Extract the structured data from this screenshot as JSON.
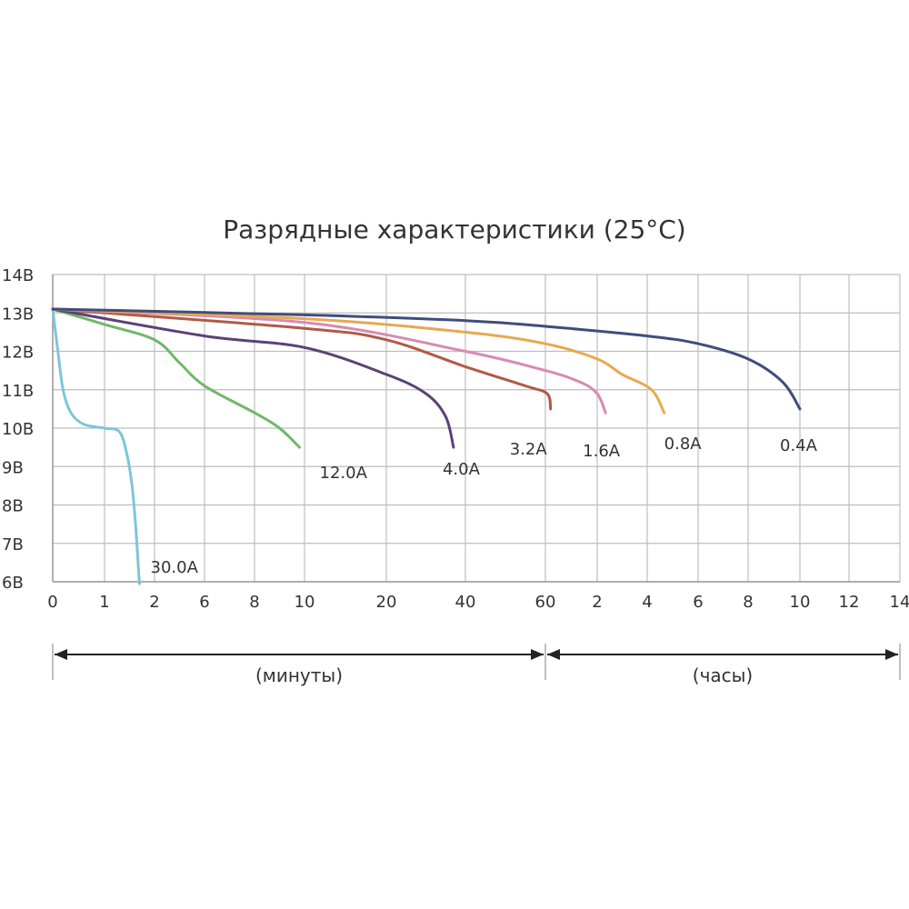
{
  "chart_data": {
    "type": "line",
    "title": "Разрядные характеристики (25°C)",
    "y_ticks": [
      "6В",
      "7В",
      "8В",
      "9В",
      "10В",
      "11В",
      "12В",
      "13В",
      "14В"
    ],
    "ylim": [
      6,
      14
    ],
    "x_scale": "piecewise: minutes 0–60, then hours 1–14",
    "x_ticks": [
      {
        "label": "0",
        "minutes": 0
      },
      {
        "label": "1",
        "minutes": 1
      },
      {
        "label": "2",
        "minutes": 2
      },
      {
        "label": "6",
        "minutes": 6
      },
      {
        "label": "8",
        "minutes": 8
      },
      {
        "label": "10",
        "minutes": 10
      },
      {
        "label": "20",
        "minutes": 20
      },
      {
        "label": "40",
        "minutes": 40
      },
      {
        "label": "60",
        "minutes": 60
      },
      {
        "label": "2",
        "minutes": 120
      },
      {
        "label": "4",
        "minutes": 240
      },
      {
        "label": "6",
        "minutes": 360
      },
      {
        "label": "8",
        "minutes": 480
      },
      {
        "label": "10",
        "minutes": 600
      },
      {
        "label": "12",
        "minutes": 720
      },
      {
        "label": "14",
        "minutes": 840
      }
    ],
    "x_segments": [
      {
        "label": "(минуты)",
        "from_minutes": 0,
        "to_minutes": 60
      },
      {
        "label": "(часы)",
        "from_minutes": 60,
        "to_minutes": 840
      }
    ],
    "grid": true,
    "series": [
      {
        "name": "30.0A",
        "color": "#7cc6d8",
        "points": [
          [
            0,
            13.1
          ],
          [
            0.1,
            12.0
          ],
          [
            0.2,
            11.0
          ],
          [
            0.35,
            10.4
          ],
          [
            0.6,
            10.1
          ],
          [
            1.0,
            10.0
          ],
          [
            1.3,
            9.9
          ],
          [
            1.45,
            9.3
          ],
          [
            1.55,
            8.5
          ],
          [
            1.62,
            7.5
          ],
          [
            1.68,
            6.3
          ],
          [
            1.7,
            5.95
          ]
        ]
      },
      {
        "name": "12.0A",
        "color": "#6fb86a",
        "points": [
          [
            0,
            13.1
          ],
          [
            1,
            12.7
          ],
          [
            2,
            12.3
          ],
          [
            4,
            11.7
          ],
          [
            6,
            11.1
          ],
          [
            8,
            10.4
          ],
          [
            9,
            10.0
          ],
          [
            9.8,
            9.5
          ]
        ]
      },
      {
        "name": "4.0A",
        "color": "#5a4275",
        "points": [
          [
            0,
            13.1
          ],
          [
            6,
            12.4
          ],
          [
            10,
            12.1
          ],
          [
            20,
            11.4
          ],
          [
            30,
            10.9
          ],
          [
            35,
            10.3
          ],
          [
            37,
            9.5
          ]
        ]
      },
      {
        "name": "3.2A",
        "color": "#b05a46",
        "points": [
          [
            0,
            13.1
          ],
          [
            10,
            12.6
          ],
          [
            20,
            12.3
          ],
          [
            40,
            11.6
          ],
          [
            55,
            11.1
          ],
          [
            62,
            10.9
          ],
          [
            66,
            10.5
          ]
        ]
      },
      {
        "name": "1.6A",
        "color": "#d88ab2",
        "points": [
          [
            0,
            13.1
          ],
          [
            10,
            12.75
          ],
          [
            40,
            12.0
          ],
          [
            60,
            11.5
          ],
          [
            100,
            11.2
          ],
          [
            120,
            10.9
          ],
          [
            140,
            10.4
          ]
        ]
      },
      {
        "name": "0.8A",
        "color": "#e8a850",
        "points": [
          [
            0,
            13.1
          ],
          [
            10,
            12.85
          ],
          [
            40,
            12.5
          ],
          [
            60,
            12.2
          ],
          [
            120,
            11.8
          ],
          [
            180,
            11.4
          ],
          [
            250,
            11.0
          ],
          [
            280,
            10.4
          ]
        ]
      },
      {
        "name": "0.4A",
        "color": "#3f4d7c",
        "points": [
          [
            0,
            13.1
          ],
          [
            10,
            12.95
          ],
          [
            40,
            12.8
          ],
          [
            60,
            12.65
          ],
          [
            240,
            12.4
          ],
          [
            360,
            12.2
          ],
          [
            480,
            11.8
          ],
          [
            560,
            11.2
          ],
          [
            600,
            10.5
          ]
        ]
      }
    ]
  }
}
